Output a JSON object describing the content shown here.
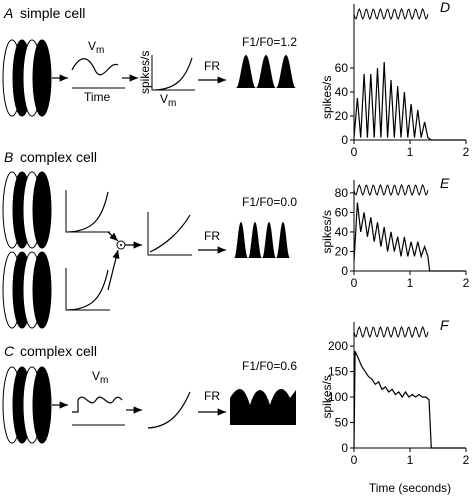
{
  "panels": [
    {
      "letter": "A",
      "title": "simple cell",
      "ratio": "F1/F0=1.2",
      "vm": {
        "base": "V",
        "sub": "m"
      },
      "time": "Time",
      "spikes": "spikes/s",
      "vm2": {
        "base": "V",
        "sub": "m"
      },
      "fr": "FR"
    },
    {
      "letter": "B",
      "title": "complex cell",
      "ratio": "F1/F0=0.0",
      "fr": "FR"
    },
    {
      "letter": "C",
      "title": "complex cell",
      "ratio": "F1/F0=0.6",
      "vm": {
        "base": "V",
        "sub": "m"
      },
      "fr": "FR"
    }
  ],
  "chart_data": [
    {
      "type": "line",
      "letter": "D",
      "ylabel": "spikes/s",
      "color": "#000000",
      "x": [
        0,
        0.06,
        0.12,
        0.18,
        0.24,
        0.3,
        0.36,
        0.42,
        0.48,
        0.54,
        0.6,
        0.66,
        0.72,
        0.78,
        0.84,
        0.9,
        0.96,
        1.02,
        1.08,
        1.14,
        1.2,
        1.26,
        1.32,
        1.38,
        2.0
      ],
      "values": [
        2,
        35,
        2,
        55,
        2,
        55,
        2,
        60,
        2,
        65,
        2,
        50,
        2,
        45,
        2,
        40,
        2,
        30,
        2,
        25,
        2,
        15,
        2,
        0,
        0
      ],
      "xlim": [
        0,
        2
      ],
      "xticks": [
        0,
        1,
        2
      ],
      "ylim": [
        0,
        75
      ],
      "yticks": [
        0,
        20,
        40,
        60
      ]
    },
    {
      "type": "line",
      "letter": "E",
      "ylabel": "spikes/s",
      "color": "#000000",
      "x": [
        0,
        0.06,
        0.12,
        0.18,
        0.24,
        0.3,
        0.36,
        0.42,
        0.48,
        0.54,
        0.6,
        0.66,
        0.72,
        0.78,
        0.84,
        0.9,
        0.96,
        1.02,
        1.08,
        1.14,
        1.2,
        1.26,
        1.32,
        1.35,
        2.0
      ],
      "values": [
        10,
        70,
        40,
        60,
        35,
        55,
        30,
        50,
        25,
        45,
        20,
        40,
        20,
        35,
        15,
        35,
        15,
        30,
        15,
        30,
        15,
        25,
        15,
        0,
        0
      ],
      "xlim": [
        0,
        2
      ],
      "xticks": [
        0,
        1,
        2
      ],
      "ylim": [
        0,
        85
      ],
      "yticks": [
        0,
        20,
        40,
        60,
        80
      ]
    },
    {
      "type": "line",
      "letter": "F",
      "ylabel": "spikes/s",
      "xlabel": "Time (seconds)",
      "color": "#000000",
      "x": [
        0,
        0.02,
        0.08,
        0.14,
        0.2,
        0.26,
        0.32,
        0.38,
        0.44,
        0.5,
        0.56,
        0.62,
        0.68,
        0.74,
        0.8,
        0.86,
        0.92,
        0.98,
        1.04,
        1.1,
        1.16,
        1.22,
        1.28,
        1.34,
        1.38,
        2.0
      ],
      "values": [
        0,
        190,
        175,
        160,
        150,
        140,
        135,
        125,
        130,
        115,
        120,
        110,
        115,
        105,
        110,
        100,
        110,
        100,
        105,
        100,
        105,
        100,
        100,
        95,
        0,
        0
      ],
      "xlim": [
        0,
        2
      ],
      "xticks": [
        0,
        1,
        2
      ],
      "ylim": [
        0,
        210
      ],
      "yticks": [
        0,
        50,
        100,
        150,
        200
      ]
    }
  ]
}
